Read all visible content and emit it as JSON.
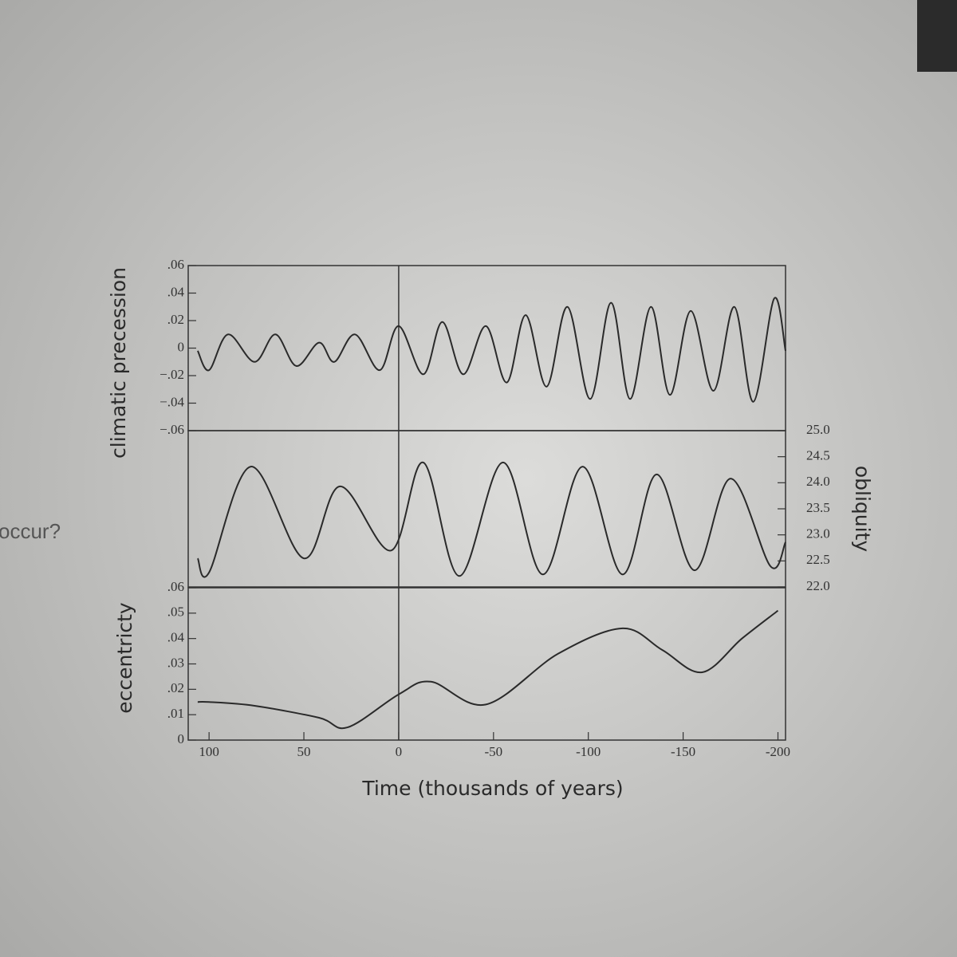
{
  "page_text": "occur?",
  "chart_data": [
    {
      "type": "line",
      "ylabel": "climatic precession",
      "y_axis_side": "left",
      "vline_x": 0,
      "xlim": [
        111,
        -204
      ],
      "ylim": [
        -0.06,
        0.06
      ],
      "yticks": [
        {
          "value": 0.06,
          "label": ".06"
        },
        {
          "value": 0.04,
          "label": ".04"
        },
        {
          "value": 0.02,
          "label": ".02"
        },
        0,
        {
          "value": -0.02,
          "label": "−.02"
        },
        {
          "value": -0.04,
          "label": "−.04"
        },
        {
          "value": -0.06,
          "label": "−.06"
        }
      ],
      "x": [
        106,
        100,
        90,
        76,
        65,
        54,
        42,
        34,
        23,
        10,
        0,
        -13,
        -23,
        -34,
        -46,
        -57,
        -67,
        -78,
        -89,
        -101,
        -112,
        -122,
        -133,
        -143,
        -154,
        -166,
        -177,
        -187,
        -198,
        -204
      ],
      "series": [
        {
          "color": "#2a2a2a",
          "values": [
            -0.002,
            -0.016,
            0.01,
            -0.01,
            0.01,
            -0.013,
            0.004,
            -0.01,
            0.01,
            -0.016,
            0.016,
            -0.019,
            0.019,
            -0.019,
            0.016,
            -0.025,
            0.024,
            -0.028,
            0.03,
            -0.037,
            0.033,
            -0.037,
            0.03,
            -0.034,
            0.027,
            -0.031,
            0.03,
            -0.039,
            0.036,
            -0.002
          ]
        }
      ]
    },
    {
      "type": "line",
      "ylabel": "obliquity",
      "y_axis_side": "right",
      "vline_x": 0,
      "xlim": [
        111,
        -204
      ],
      "ylim": [
        22.0,
        25.0
      ],
      "yticks": [
        {
          "value": 25,
          "label": "25.0"
        },
        24.5,
        {
          "value": 24,
          "label": "24.0"
        },
        23.5,
        {
          "value": 23,
          "label": "23.0"
        },
        22.5,
        {
          "value": 22,
          "label": "22.0"
        }
      ],
      "x": [
        106,
        100,
        78,
        50,
        31,
        4,
        -13,
        -32,
        -55,
        -76,
        -97,
        -118,
        -136,
        -156,
        -175,
        -196,
        -204
      ],
      "series": [
        {
          "color": "#2a2a2a",
          "values": [
            22.55,
            22.28,
            24.31,
            22.55,
            23.93,
            22.7,
            24.39,
            22.21,
            24.39,
            22.24,
            24.31,
            22.24,
            24.16,
            22.32,
            24.08,
            22.4,
            22.86
          ]
        }
      ]
    },
    {
      "type": "line",
      "ylabel": "eccentricty",
      "y_axis_side": "left",
      "vline_x": 0,
      "xlabel": "Time (thousands of years)",
      "xlim": [
        111,
        -204
      ],
      "ylim": [
        0,
        0.06
      ],
      "xticks": [
        100,
        50,
        0,
        -50,
        -100,
        -150,
        -200
      ],
      "yticks": [
        {
          "value": 0.06,
          "label": ".06"
        },
        {
          "value": 0.05,
          "label": ".05"
        },
        {
          "value": 0.04,
          "label": ".04"
        },
        {
          "value": 0.03,
          "label": ".03"
        },
        {
          "value": 0.02,
          "label": ".02"
        },
        {
          "value": 0.01,
          "label": ".01"
        },
        0
      ],
      "x": [
        106,
        100,
        76,
        42,
        27,
        0,
        -17,
        -46,
        -84,
        -118,
        -139,
        -160,
        -181,
        -200
      ],
      "series": [
        {
          "color": "#2a2a2a",
          "values": [
            0.015,
            0.015,
            0.0135,
            0.0088,
            0.005,
            0.018,
            0.023,
            0.014,
            0.034,
            0.044,
            0.0355,
            0.0267,
            0.04,
            0.051
          ]
        }
      ]
    }
  ]
}
